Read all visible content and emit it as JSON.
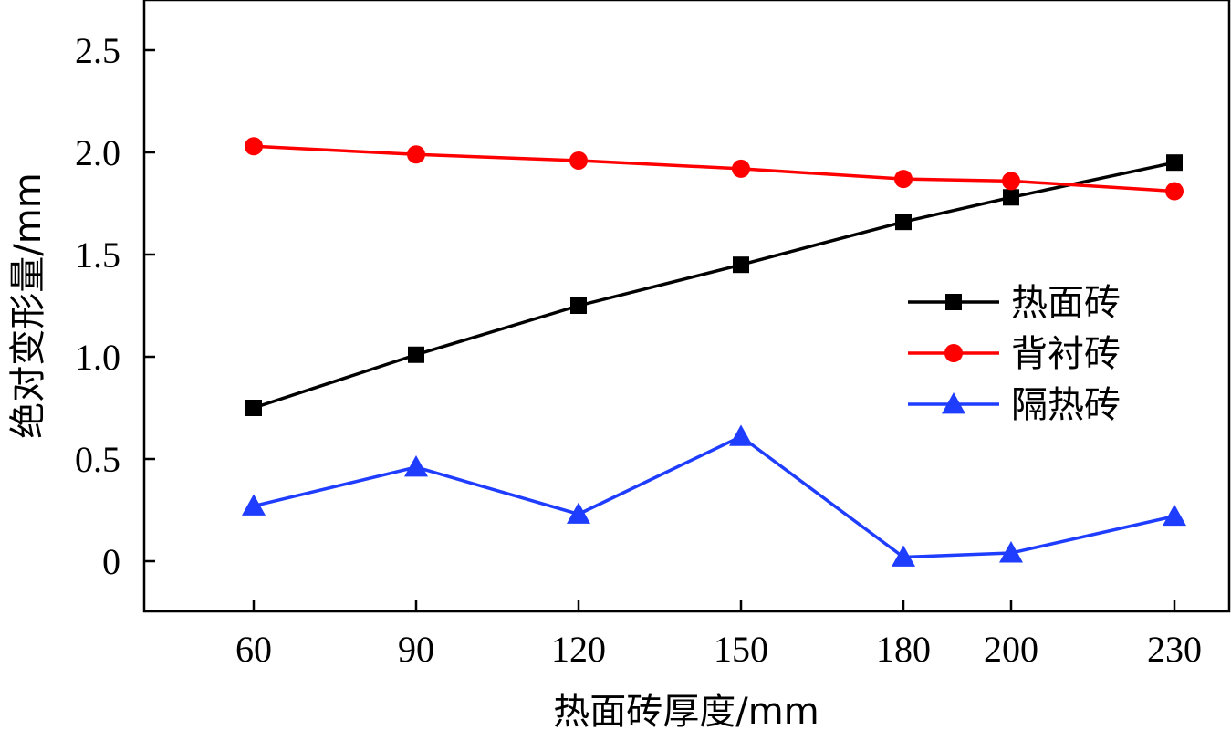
{
  "chart_data": {
    "type": "line",
    "categories": [
      "60",
      "90",
      "120",
      "150",
      "180",
      "200",
      "230"
    ],
    "xlabel": "热面砖厚度/mm",
    "ylabel": "绝对变形量/mm",
    "ylim": [
      -0.25,
      2.75
    ],
    "y_ticks": [
      "0",
      "0.5",
      "1.0",
      "1.5",
      "2.0",
      "2.5"
    ],
    "y_tick_values": [
      0,
      0.5,
      1.0,
      1.5,
      2.0,
      2.5
    ],
    "grid": false,
    "legend_position": "right-middle",
    "series": [
      {
        "name": "热面砖",
        "color": "#000000",
        "marker": "square",
        "values": [
          0.75,
          1.01,
          1.25,
          1.45,
          1.66,
          1.78,
          1.95
        ]
      },
      {
        "name": "背衬砖",
        "color": "#ff0000",
        "marker": "circle",
        "values": [
          2.03,
          1.99,
          1.96,
          1.92,
          1.87,
          1.86,
          1.81
        ]
      },
      {
        "name": "隔热砖",
        "color": "#1f3dff",
        "marker": "triangle",
        "values": [
          0.27,
          0.46,
          0.23,
          0.61,
          0.02,
          0.04,
          0.22
        ]
      }
    ]
  }
}
